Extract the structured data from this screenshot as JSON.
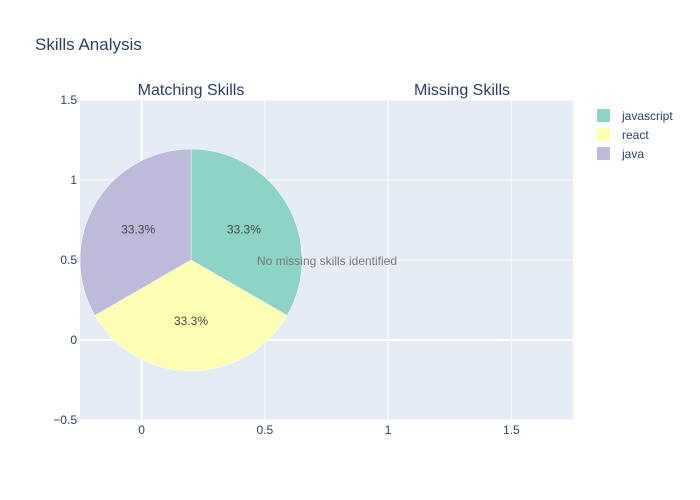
{
  "chart_data": {
    "type": "pie",
    "title": "Skills Analysis",
    "subplots": [
      {
        "title": "Matching Skills",
        "type": "pie",
        "labels": [
          "javascript",
          "react",
          "java"
        ],
        "values": [
          1,
          1,
          1
        ],
        "percent_labels": [
          "33.3%",
          "33.3%",
          "33.3%"
        ],
        "colors": [
          "#8dd3c7",
          "#ffffb3",
          "#bebada"
        ]
      },
      {
        "title": "Missing Skills",
        "type": "pie",
        "labels": [],
        "values": [],
        "annotation": "No missing skills identified"
      }
    ],
    "x_axis": {
      "range": [
        -0.25,
        1.75
      ],
      "ticks": [
        "0",
        "0.5",
        "1",
        "1.5"
      ],
      "tick_values": [
        0,
        0.5,
        1,
        1.5
      ]
    },
    "y_axis": {
      "range": [
        -0.5,
        1.5
      ],
      "ticks": [
        "−0.5",
        "0",
        "0.5",
        "1",
        "1.5"
      ],
      "tick_values": [
        -0.5,
        0,
        0.5,
        1,
        1.5
      ]
    },
    "grid": true,
    "legend": {
      "placement": "top-right",
      "entries": [
        {
          "label": "javascript",
          "color": "#8dd3c7"
        },
        {
          "label": "react",
          "color": "#ffffb3"
        },
        {
          "label": "java",
          "color": "#bebada"
        }
      ]
    },
    "plot_background": "#e5ecf6"
  }
}
